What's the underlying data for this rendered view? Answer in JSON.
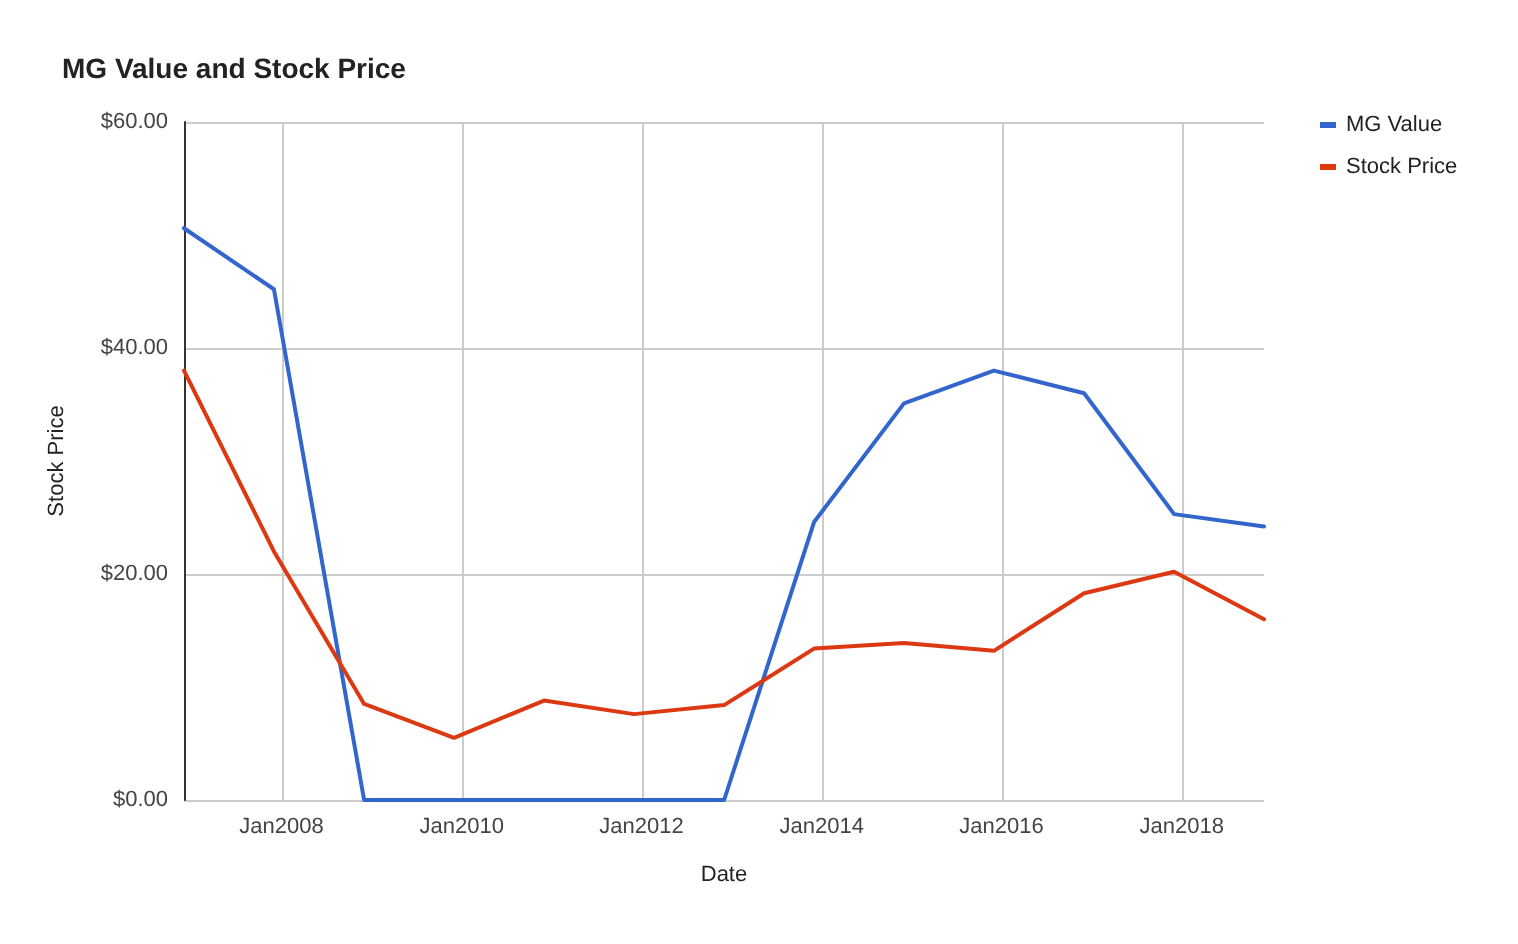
{
  "chart_data": {
    "type": "line",
    "title": "MG Value and Stock Price",
    "xlabel": "Date",
    "ylabel": "Stock Price",
    "x": [
      "2006-12",
      "2007-12",
      "2008-12",
      "2009-12",
      "2010-12",
      "2011-12",
      "2012-12",
      "2013-12",
      "2014-12",
      "2015-12",
      "2016-12",
      "2017-12",
      "2018-12"
    ],
    "series": [
      {
        "name": "MG Value",
        "color": "#3366cc",
        "values": [
          50.6,
          45.2,
          0,
          0,
          0,
          0,
          0,
          24.6,
          35.1,
          38,
          36,
          25.3,
          24.2
        ]
      },
      {
        "name": "Stock Price",
        "color": "#dc3912",
        "values": [
          38,
          22,
          8.5,
          5.5,
          8.8,
          7.6,
          8.4,
          13.4,
          13.9,
          13.2,
          18.3,
          20.2,
          16
        ]
      }
    ],
    "xlim": [
      "2006-12",
      "2018-12"
    ],
    "xticks": [
      {
        "value": "2008-01",
        "label": "Jan2008"
      },
      {
        "value": "2010-01",
        "label": "Jan2010"
      },
      {
        "value": "2012-01",
        "label": "Jan2012"
      },
      {
        "value": "2014-01",
        "label": "Jan2014"
      },
      {
        "value": "2016-01",
        "label": "Jan2016"
      },
      {
        "value": "2018-01",
        "label": "Jan2018"
      }
    ],
    "ylim": [
      0,
      60
    ],
    "yticks": [
      {
        "value": 0,
        "label": "$0.00"
      },
      {
        "value": 20,
        "label": "$20.00"
      },
      {
        "value": 40,
        "label": "$40.00"
      },
      {
        "value": 60,
        "label": "$60.00"
      }
    ],
    "grid": true,
    "legend": "right",
    "marker": "none",
    "line_style": "solid"
  }
}
